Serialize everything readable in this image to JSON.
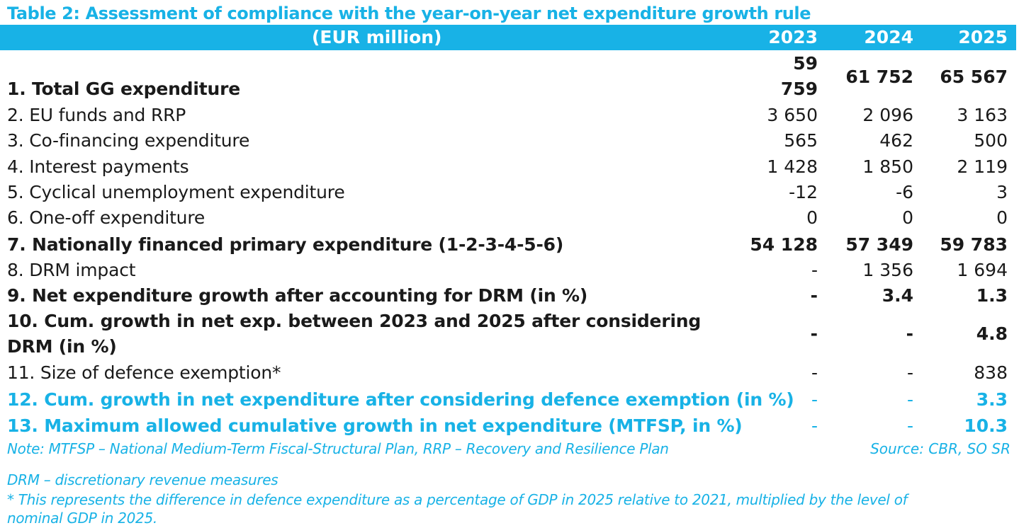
{
  "title": "Table 2: Assessment of compliance with the year-on-year net expenditure growth rule",
  "header": {
    "label": "(EUR million)",
    "years": [
      "2023",
      "2024",
      "2025"
    ]
  },
  "rows": [
    {
      "label": "1. Total GG expenditure",
      "values": [
        "59 759",
        "61 752",
        "65 567"
      ]
    },
    {
      "label": "2. EU funds and RRP",
      "values": [
        "3 650",
        "2 096",
        "3 163"
      ]
    },
    {
      "label": "3. Co-financing expenditure",
      "values": [
        "565",
        "462",
        "500"
      ]
    },
    {
      "label": "4. Interest payments",
      "values": [
        "1 428",
        "1 850",
        "2 119"
      ]
    },
    {
      "label": "5. Cyclical unemployment expenditure",
      "values": [
        "-12",
        "-6",
        "3"
      ]
    },
    {
      "label": "6. One-off expenditure",
      "values": [
        "0",
        "0",
        "0"
      ]
    },
    {
      "label": "7. Nationally financed primary expenditure (1-2-3-4-5-6)",
      "values": [
        "54 128",
        "57 349",
        "59 783"
      ]
    },
    {
      "label": "8. DRM impact",
      "values": [
        "-",
        "1 356",
        "1 694"
      ]
    },
    {
      "label": "9. Net expenditure growth after accounting for DRM (in %)",
      "values": [
        "-",
        "3.4",
        "1.3"
      ]
    },
    {
      "label": "10. Cum. growth in net exp. between 2023 and 2025 after considering",
      "label_line2": "DRM (in %)",
      "values": [
        "-",
        "-",
        "4.8"
      ]
    },
    {
      "label": "11. Size of defence exemption*",
      "values": [
        "-",
        "-",
        "838"
      ]
    },
    {
      "label": "12. Cum. growth in net expenditure after considering defence exemption (in %)",
      "values": [
        "-",
        "-",
        "3.3"
      ]
    },
    {
      "label": "13. Maximum allowed cumulative growth in net expenditure (MTFSP, in %)",
      "values": [
        "-",
        "-",
        "10.3"
      ]
    }
  ],
  "notes": {
    "note": "Note: MTFSP – National Medium-Term Fiscal-Structural Plan, RRP – Recovery and Resilience Plan",
    "source": "Source: CBR, SO SR",
    "drm": "DRM – discretionary revenue measures",
    "footnote_line1": "* This represents the difference in defence expenditure as a percentage of GDP in 2025 relative to 2021, multiplied by the level of",
    "footnote_line2": "nominal GDP in 2025."
  },
  "colors": {
    "accent": "#18b2e6",
    "text": "#1a1a1a",
    "header_text": "#ffffff"
  }
}
